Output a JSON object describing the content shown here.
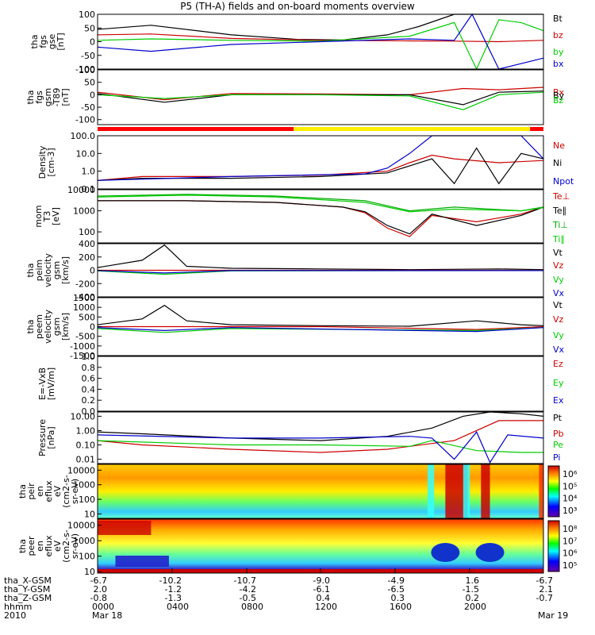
{
  "title": "P5 (TH-A) fields and on-board moments overview",
  "chart_data": [
    {
      "type": "line",
      "panel": "fgs_gse",
      "ylabel": [
        "tha",
        "fgs",
        "gse",
        "[nT]"
      ],
      "ylim": [
        -100,
        100
      ],
      "yticks": [
        "100",
        "50",
        "0",
        "-50",
        "-100"
      ],
      "series": [
        {
          "name": "Bt",
          "color": "#000000",
          "x": [
            0,
            0.12,
            0.3,
            0.45,
            0.55,
            0.65,
            0.72,
            0.8,
            0.9,
            1
          ],
          "y": [
            45,
            60,
            25,
            8,
            6,
            25,
            55,
            100,
            100,
            100
          ]
        },
        {
          "name": "bz",
          "color": "#cc0000",
          "x": [
            0,
            0.12,
            0.3,
            0.5,
            0.7,
            0.8,
            0.9,
            1
          ],
          "y": [
            25,
            28,
            12,
            5,
            3,
            2,
            0,
            5
          ]
        },
        {
          "name": "by",
          "color": "#00cc00",
          "x": [
            0,
            0.12,
            0.3,
            0.5,
            0.7,
            0.8,
            0.85,
            0.9,
            0.95,
            1
          ],
          "y": [
            5,
            10,
            5,
            2,
            20,
            70,
            -100,
            80,
            70,
            40
          ]
        },
        {
          "name": "bx",
          "color": "#0000cc",
          "x": [
            0,
            0.12,
            0.3,
            0.5,
            0.7,
            0.8,
            0.84,
            0.9,
            1
          ],
          "y": [
            -20,
            -35,
            -10,
            0,
            10,
            5,
            100,
            -100,
            -60
          ]
        }
      ]
    },
    {
      "type": "line",
      "panel": "fgs_gsm",
      "ylabel": [
        "tha",
        "fgs",
        "gsm",
        "-T89",
        "[nT]"
      ],
      "ylim": [
        -120,
        100
      ],
      "yticks": [
        "100",
        "50",
        "0",
        "-50",
        "-100"
      ],
      "series": [
        {
          "name": "Bx",
          "color": "#cc0000",
          "x": [
            0,
            0.15,
            0.3,
            0.5,
            0.7,
            0.82,
            0.9,
            1
          ],
          "y": [
            10,
            -20,
            5,
            3,
            0,
            25,
            20,
            30
          ]
        },
        {
          "name": "By",
          "color": "#000000",
          "x": [
            0,
            0.15,
            0.3,
            0.5,
            0.7,
            0.82,
            0.9,
            1
          ],
          "y": [
            5,
            -30,
            0,
            0,
            0,
            -40,
            10,
            15
          ]
        },
        {
          "name": "Bz",
          "color": "#00cc00",
          "x": [
            0,
            0.15,
            0.3,
            0.5,
            0.7,
            0.82,
            0.9,
            1
          ],
          "y": [
            0,
            -15,
            0,
            0,
            -5,
            -60,
            0,
            10
          ]
        }
      ]
    },
    {
      "type": "line",
      "panel": "density",
      "ylabel": [
        "Density",
        "[cm-3]"
      ],
      "ylim": [
        0.1,
        100
      ],
      "log": true,
      "yticks": [
        "100.0",
        "10.0",
        "1.0",
        "0.1"
      ],
      "series": [
        {
          "name": "Ne",
          "color": "#cc0000",
          "x": [
            0,
            0.1,
            0.3,
            0.5,
            0.65,
            0.7,
            0.75,
            0.8,
            0.9,
            1
          ],
          "y": [
            0.3,
            0.5,
            0.5,
            0.6,
            1.0,
            3,
            8,
            5,
            3,
            4
          ]
        },
        {
          "name": "Ni",
          "color": "#000000",
          "x": [
            0,
            0.1,
            0.3,
            0.5,
            0.65,
            0.7,
            0.75,
            0.8,
            0.85,
            0.9,
            0.95,
            1
          ],
          "y": [
            0.3,
            0.4,
            0.4,
            0.5,
            0.8,
            2,
            5,
            0.2,
            20,
            0.2,
            10,
            5
          ]
        },
        {
          "name": "Npot",
          "color": "#0000cc",
          "x": [
            0,
            0.3,
            0.6,
            0.65,
            0.7,
            0.75,
            0.95,
            1
          ],
          "y": [
            0.3,
            0.5,
            0.7,
            1.5,
            10,
            100,
            100,
            5
          ]
        }
      ]
    },
    {
      "type": "line",
      "panel": "temperature",
      "ylabel": [
        "mom",
        "T3",
        "[eV]"
      ],
      "ylim": [
        30,
        10000
      ],
      "log": true,
      "yticks": [
        "10000",
        "1000",
        "100"
      ],
      "series": [
        {
          "name": "Te⊥",
          "color": "#cc0000",
          "x": [
            0,
            0.2,
            0.4,
            0.55,
            0.6,
            0.65,
            0.7,
            0.75,
            0.85,
            0.95,
            1
          ],
          "y": [
            3000,
            3000,
            2500,
            1500,
            800,
            150,
            60,
            600,
            300,
            700,
            1500
          ]
        },
        {
          "name": "Te∥",
          "color": "#000000",
          "x": [
            0,
            0.2,
            0.4,
            0.55,
            0.6,
            0.65,
            0.7,
            0.75,
            0.85,
            0.95,
            1
          ],
          "y": [
            3000,
            3000,
            2500,
            1500,
            900,
            200,
            80,
            700,
            200,
            600,
            1500
          ]
        },
        {
          "name": "Ti⊥",
          "color": "#00aa00",
          "x": [
            0,
            0.2,
            0.4,
            0.6,
            0.7,
            0.8,
            0.95,
            1
          ],
          "y": [
            5000,
            6000,
            5000,
            3000,
            1000,
            1500,
            1000,
            1500
          ]
        },
        {
          "name": "Ti∥",
          "color": "#00cc00",
          "x": [
            0,
            0.2,
            0.4,
            0.6,
            0.7,
            0.8,
            0.95,
            1
          ],
          "y": [
            4500,
            5500,
            4500,
            2500,
            900,
            1200,
            1000,
            1400
          ]
        }
      ]
    },
    {
      "type": "line",
      "panel": "peim_velocity",
      "ylabel": [
        "tha",
        "peim",
        "velocity",
        "gsm",
        "[km/s]"
      ],
      "ylim": [
        -400,
        400
      ],
      "yticks": [
        "400",
        "200",
        "0",
        "-200",
        "-400"
      ],
      "series": [
        {
          "name": "Vt",
          "color": "#000000",
          "x": [
            0,
            0.1,
            0.15,
            0.2,
            0.3,
            0.5,
            0.7,
            0.9,
            1
          ],
          "y": [
            40,
            150,
            380,
            60,
            30,
            20,
            10,
            20,
            10
          ]
        },
        {
          "name": "Vz",
          "color": "#cc0000",
          "x": [
            0,
            0.5,
            1
          ],
          "y": [
            0,
            0,
            0
          ]
        },
        {
          "name": "Vy",
          "color": "#00cc00",
          "x": [
            0,
            0.15,
            0.3,
            1
          ],
          "y": [
            -10,
            -60,
            -10,
            -5
          ]
        },
        {
          "name": "Vx",
          "color": "#0000cc",
          "x": [
            0,
            0.15,
            0.3,
            1
          ],
          "y": [
            -5,
            -40,
            -5,
            -5
          ]
        }
      ]
    },
    {
      "type": "line",
      "panel": "peem_velocity",
      "ylabel": [
        "tha",
        "peem",
        "velocity",
        "gsm",
        "[km/s]"
      ],
      "ylim": [
        -1500,
        1500
      ],
      "yticks": [
        "1500",
        "1000",
        "500",
        "0",
        "-500",
        "-1000",
        "-1500"
      ],
      "series": [
        {
          "name": "Vt",
          "color": "#000000",
          "x": [
            0,
            0.1,
            0.15,
            0.2,
            0.3,
            0.5,
            0.7,
            0.85,
            0.95,
            1
          ],
          "y": [
            100,
            400,
            1100,
            300,
            100,
            50,
            20,
            300,
            100,
            50
          ]
        },
        {
          "name": "Vz",
          "color": "#cc0000",
          "x": [
            0,
            0.5,
            0.85,
            1
          ],
          "y": [
            0,
            0,
            -150,
            0
          ]
        },
        {
          "name": "Vy",
          "color": "#00cc00",
          "x": [
            0,
            0.15,
            0.3,
            0.85,
            1
          ],
          "y": [
            -100,
            -300,
            -100,
            -200,
            -50
          ]
        },
        {
          "name": "Vx",
          "color": "#0000cc",
          "x": [
            0,
            0.15,
            0.3,
            0.85,
            1
          ],
          "y": [
            -50,
            -200,
            -50,
            -250,
            -50
          ]
        }
      ]
    },
    {
      "type": "line",
      "panel": "efield",
      "ylabel": [
        "E=-VxB",
        "[mV/m]"
      ],
      "ylim": [
        0,
        1
      ],
      "yticks": [
        "1.0",
        "0.8",
        "0.6",
        "0.4",
        "0.2",
        "0.0"
      ],
      "series": [
        {
          "name": "Ez",
          "color": "#cc0000",
          "x": [],
          "y": []
        },
        {
          "name": "Ey",
          "color": "#00cc00",
          "x": [],
          "y": []
        },
        {
          "name": "Ex",
          "color": "#0000cc",
          "x": [],
          "y": []
        }
      ]
    },
    {
      "type": "line",
      "panel": "pressure",
      "ylabel": [
        "Pressure",
        "[nPa]"
      ],
      "ylim": [
        0.005,
        20
      ],
      "log": true,
      "yticks": [
        "10.00",
        "1.00",
        "0.10",
        "0.01"
      ],
      "series": [
        {
          "name": "Pt",
          "color": "#000000",
          "x": [
            0,
            0.1,
            0.3,
            0.5,
            0.65,
            0.75,
            0.82,
            0.88,
            0.95,
            1
          ],
          "y": [
            0.8,
            0.6,
            0.3,
            0.2,
            0.4,
            1.5,
            10,
            20,
            15,
            10
          ]
        },
        {
          "name": "Pb",
          "color": "#cc0000",
          "x": [
            0,
            0.1,
            0.3,
            0.5,
            0.65,
            0.8,
            0.9,
            1
          ],
          "y": [
            0.2,
            0.1,
            0.05,
            0.03,
            0.05,
            0.2,
            5,
            5
          ]
        },
        {
          "name": "Pe",
          "color": "#00cc00",
          "x": [
            0,
            0.3,
            0.5,
            0.7,
            0.75,
            0.85,
            0.95,
            1
          ],
          "y": [
            0.2,
            0.1,
            0.1,
            0.08,
            0.2,
            0.04,
            0.03,
            0.03
          ]
        },
        {
          "name": "Pi",
          "color": "#0000cc",
          "x": [
            0,
            0.3,
            0.5,
            0.7,
            0.75,
            0.8,
            0.85,
            0.88,
            0.92,
            1
          ],
          "y": [
            0.5,
            0.3,
            0.3,
            0.4,
            0.3,
            0.01,
            0.8,
            0.006,
            0.5,
            0.3
          ]
        }
      ]
    },
    {
      "type": "heatmap",
      "panel": "peir_en_eflux",
      "ylabel": [
        "tha",
        "peir",
        "en",
        "eflux",
        "eV",
        "(cm2-s-",
        "sr-eV)"
      ],
      "ylim": [
        5,
        25000
      ],
      "log": true,
      "yticks": [
        "10000",
        "1000",
        "100",
        "10"
      ],
      "colorbar_ticks": [
        "10⁶",
        "10⁵",
        "10⁴",
        "10³"
      ]
    },
    {
      "type": "heatmap",
      "panel": "peer_en_eflux",
      "ylabel": [
        "tha",
        "peer",
        "en",
        "eflux",
        "eV",
        "(cm2-s-",
        "sr-eV)"
      ],
      "ylim": [
        8,
        25000
      ],
      "log": true,
      "yticks": [
        "10000",
        "1000",
        "100",
        "10"
      ],
      "colorbar_ticks": [
        "10⁸",
        "10⁷",
        "10⁶",
        "10⁵"
      ]
    }
  ],
  "bottom_axis": {
    "labels": [
      "tha_X-GSM",
      "tha_Y-GSM",
      "tha_Z-GSM",
      "hhmm",
      "2010"
    ],
    "columns": [
      {
        "values": [
          "-6.7",
          "2.0",
          "-0.8",
          "0000",
          "Mar 18"
        ]
      },
      {
        "values": [
          "-10.2",
          "-1.2",
          "-1.3",
          "0400",
          ""
        ]
      },
      {
        "values": [
          "-10.7",
          "-4.2",
          "-0.5",
          "0800",
          ""
        ]
      },
      {
        "values": [
          "-9.0",
          "-6.1",
          "0.4",
          "1200",
          ""
        ]
      },
      {
        "values": [
          "-4.9",
          "-6.5",
          "0.3",
          "1600",
          ""
        ]
      },
      {
        "values": [
          "1.6",
          "-1.5",
          "0.2",
          "2000",
          ""
        ]
      },
      {
        "values": [
          "-6.7",
          "2.1",
          "-0.7",
          "",
          "Mar 19"
        ]
      }
    ]
  }
}
